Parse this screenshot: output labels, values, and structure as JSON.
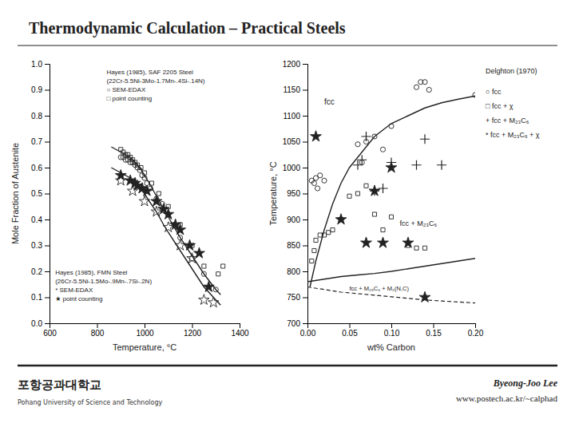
{
  "title": "Thermodynamic Calculation – Practical Steels",
  "annotations": [
    "Byeong-Joo Lee",
    "www.postech.ac.kr/~calphad",
    "포항공과대학교",
    "Pohang University of Science and Technology"
  ],
  "chart_data": [
    {
      "type": "scatter",
      "xlabel": "Temperature, °C",
      "ylabel": "Mole Fraction of Austenite",
      "xlim": [
        600,
        1400
      ],
      "ylim": [
        0,
        1.0
      ],
      "xticks": [
        600,
        800,
        1000,
        1200,
        1400
      ],
      "yticks": [
        {
          "value": 0,
          "label": "0.0"
        },
        0.1,
        0.2,
        0.3,
        0.4,
        0.5,
        0.6,
        0.7,
        0.8,
        0.9,
        {
          "value": 1.0,
          "label": "1.0"
        }
      ],
      "grid": false,
      "annotations": [
        "Hayes (1985), SAF 2205 Steel\n(22Cr-5.5Ni-3Mo-1.7Mn-.4Si-.14N)\n○ SEM-EDAX\n□ point counting",
        "Hayes (1985), FMN Steel\n(26Cr-5.5Ni-1.5Mo-.9Mn-.7Si-.2N)\n* SEM-EDAX\n★ point counting"
      ],
      "series": [
        {
          "type": "line",
          "line_style": "solid",
          "x": [
            860,
            880,
            900,
            920,
            940,
            960,
            980,
            1000,
            1020,
            1050,
            1080,
            1100,
            1150,
            1200,
            1250,
            1300,
            1320
          ],
          "values": [
            0.68,
            0.67,
            0.66,
            0.65,
            0.64,
            0.62,
            0.6,
            0.57,
            0.54,
            0.49,
            0.44,
            0.41,
            0.33,
            0.26,
            0.19,
            0.13,
            0.11
          ]
        },
        {
          "type": "line",
          "line_style": "solid",
          "x": [
            860,
            880,
            900,
            920,
            940,
            960,
            980,
            1000,
            1020,
            1050,
            1080,
            1100,
            1150,
            1200,
            1250,
            1300,
            1320
          ],
          "values": [
            0.6,
            0.59,
            0.58,
            0.57,
            0.56,
            0.54,
            0.52,
            0.5,
            0.47,
            0.43,
            0.38,
            0.35,
            0.28,
            0.21,
            0.14,
            0.09,
            0.07
          ]
        },
        {
          "type": "scatter",
          "marker": "circle",
          "x": [
            900,
            910,
            920,
            930,
            940,
            950,
            960,
            970,
            980,
            990,
            1000,
            1010,
            1025,
            1050,
            1075,
            1100,
            1125,
            1150,
            1200,
            1250,
            1300
          ],
          "values": [
            0.64,
            0.64,
            0.63,
            0.63,
            0.62,
            0.62,
            0.61,
            0.6,
            0.59,
            0.57,
            0.56,
            0.54,
            0.52,
            0.48,
            0.46,
            0.42,
            0.38,
            0.33,
            0.25,
            0.19,
            0.13
          ]
        },
        {
          "type": "scatter",
          "marker": "square",
          "x": [
            900,
            910,
            920,
            930,
            940,
            950,
            960,
            970,
            985,
            1000,
            1030,
            1060,
            1100,
            1150,
            1200,
            1250,
            1310,
            1330
          ],
          "values": [
            0.67,
            0.66,
            0.65,
            0.65,
            0.64,
            0.63,
            0.62,
            0.61,
            0.6,
            0.58,
            0.54,
            0.5,
            0.45,
            0.38,
            0.3,
            0.22,
            0.19,
            0.22
          ]
        },
        {
          "type": "scatter",
          "marker": "star-open",
          "x": [
            900,
            950,
            1000,
            1050,
            1100,
            1150,
            1200,
            1250,
            1290
          ],
          "values": [
            0.55,
            0.51,
            0.47,
            0.43,
            0.37,
            0.3,
            0.25,
            0.09,
            0.08
          ]
        },
        {
          "type": "scatter",
          "marker": "star",
          "x": [
            900,
            940,
            960,
            970,
            990,
            1010,
            1050,
            1080,
            1100,
            1130,
            1150,
            1190,
            1230,
            1270
          ],
          "values": [
            0.57,
            0.55,
            0.54,
            0.53,
            0.52,
            0.51,
            0.47,
            0.44,
            0.42,
            0.38,
            0.36,
            0.3,
            0.27,
            0.14
          ]
        }
      ]
    },
    {
      "type": "scatter",
      "xlabel": "wt% Carbon",
      "ylabel": "Temperature, °C",
      "xlim": [
        0,
        0.2
      ],
      "ylim": [
        700,
        1200
      ],
      "xticks": [
        {
          "value": 0,
          "label": "0.00"
        },
        0.05,
        {
          "value": 0.1,
          "label": "0.10"
        },
        0.15,
        {
          "value": 0.2,
          "label": "0.20"
        }
      ],
      "yticks": [
        700,
        750,
        800,
        850,
        900,
        950,
        1000,
        1050,
        1100,
        1150,
        1200
      ],
      "grid": false,
      "annotations": [
        "fcc",
        "fcc + M₂₃C₆",
        "fcc + M₂₃C₆ + M₂(N,C)",
        "Delghton (1970)",
        "○ fcc",
        "□ fcc + χ",
        "+ fcc + M₂₃C₆",
        "* fcc + M₂₃C₆ + χ"
      ],
      "series": [
        {
          "type": "line",
          "line_style": "solid",
          "x": [
            0.003,
            0.01,
            0.02,
            0.03,
            0.04,
            0.05,
            0.06,
            0.07,
            0.08,
            0.1,
            0.12,
            0.14,
            0.16,
            0.18,
            0.2
          ],
          "values": [
            770,
            820,
            880,
            930,
            970,
            1000,
            1020,
            1040,
            1060,
            1085,
            1100,
            1115,
            1125,
            1132,
            1138
          ]
        },
        {
          "type": "line",
          "line_style": "solid",
          "x": [
            0,
            0.02,
            0.04,
            0.06,
            0.08,
            0.1,
            0.12,
            0.14,
            0.16,
            0.18,
            0.2
          ],
          "values": [
            780,
            785,
            790,
            793,
            796,
            800,
            805,
            810,
            815,
            820,
            825
          ]
        },
        {
          "type": "line",
          "line_style": "dashed",
          "x": [
            0,
            0.02,
            0.04,
            0.06,
            0.08,
            0.1,
            0.12,
            0.14,
            0.16,
            0.18,
            0.2
          ],
          "values": [
            770,
            765,
            760,
            757,
            754,
            751,
            748,
            745,
            743,
            741,
            739
          ]
        },
        {
          "type": "scatter",
          "marker": "circle",
          "x": [
            0.005,
            0.008,
            0.01,
            0.012,
            0.015,
            0.02,
            0.06,
            0.065,
            0.07,
            0.08,
            0.09,
            0.1,
            0.13,
            0.135,
            0.14,
            0.145,
            0.2
          ],
          "values": [
            975,
            970,
            980,
            960,
            985,
            975,
            1045,
            1010,
            1050,
            1060,
            1035,
            1080,
            1155,
            1165,
            1165,
            1150,
            1140
          ]
        },
        {
          "type": "scatter",
          "marker": "square",
          "x": [
            0.005,
            0.008,
            0.01,
            0.015,
            0.02,
            0.025,
            0.03,
            0.04,
            0.05,
            0.06,
            0.07,
            0.08,
            0.09,
            0.1,
            0.12,
            0.13,
            0.14
          ],
          "values": [
            820,
            840,
            860,
            870,
            870,
            875,
            880,
            900,
            945,
            950,
            965,
            910,
            880,
            905,
            850,
            845,
            845
          ]
        },
        {
          "type": "scatter",
          "marker": "plus",
          "x": [
            0.06,
            0.065,
            0.07,
            0.08,
            0.09,
            0.1,
            0.13,
            0.14,
            0.16
          ],
          "values": [
            1005,
            1015,
            1060,
            955,
            960,
            1010,
            1005,
            1055,
            1005
          ]
        },
        {
          "type": "scatter",
          "marker": "star",
          "x": [
            0.01,
            0.04,
            0.07,
            0.08,
            0.09,
            0.1,
            0.12,
            0.14
          ],
          "values": [
            1060,
            900,
            855,
            955,
            855,
            1000,
            855,
            750
          ]
        }
      ]
    }
  ]
}
